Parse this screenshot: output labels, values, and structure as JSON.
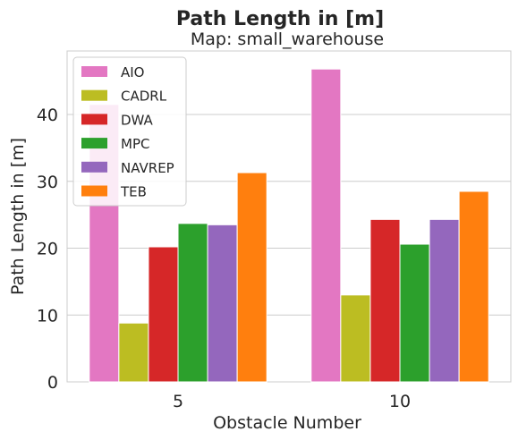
{
  "chart_data": {
    "type": "bar",
    "title": "Path Length in [m]",
    "subtitle": "Map: small_warehouse",
    "xlabel": "Obstacle Number",
    "ylabel": "Path Length in [m]",
    "categories": [
      "5",
      "10"
    ],
    "ylim": [
      0,
      49.5
    ],
    "yticks": [
      0,
      10,
      20,
      30,
      40
    ],
    "grid": true,
    "legend_position": "top-left",
    "series": [
      {
        "name": "AIO",
        "color": "#e377c2",
        "values": [
          41.5,
          46.8
        ]
      },
      {
        "name": "CADRL",
        "color": "#bcbd22",
        "values": [
          8.8,
          13.0
        ]
      },
      {
        "name": "DWA",
        "color": "#d62728",
        "values": [
          20.2,
          24.3
        ]
      },
      {
        "name": "MPC",
        "color": "#2ca02c",
        "values": [
          23.7,
          20.6
        ]
      },
      {
        "name": "NAVREP",
        "color": "#9467bd",
        "values": [
          23.5,
          24.3
        ]
      },
      {
        "name": "TEB",
        "color": "#ff7f0e",
        "values": [
          31.3,
          28.5
        ]
      }
    ]
  }
}
